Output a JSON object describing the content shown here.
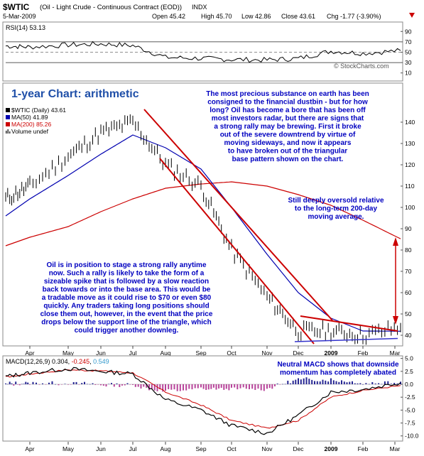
{
  "header": {
    "symbol": "$WTIC",
    "description": "(Oil - Light Crude - Continuous Contract (EOD))",
    "exchange": "INDX",
    "date": "5-Mar-2009",
    "open": "Open 45.42",
    "high": "High 45.70",
    "low": "Low 42.86",
    "close": "Close 43.61",
    "chg": "Chg -1.77 (-3.90%)",
    "chg_arrow": "down-arrow-icon",
    "watermark": "© StockCharts.com"
  },
  "colors": {
    "panel_bg": "#ffffff",
    "page_bg": "#ffffff",
    "price": "#000000",
    "ma50": "#0000b0",
    "ma200": "#cc0000",
    "channel": "#cc0000",
    "annotation_text": "#0000c0",
    "rsi_line": "#000000",
    "macd_line": "#000000",
    "macd_signal": "#cc0000",
    "histogram": "#000080",
    "neg_fill": "#ff9999",
    "year_label": "#000000"
  },
  "rsi_panel": {
    "label": "RSI(14) 53.13",
    "ticks": [
      "90",
      "70",
      "50",
      "30",
      "10"
    ],
    "ylim": [
      0,
      100
    ]
  },
  "price_panel": {
    "title": "1-year Chart: arithmetic",
    "legend": [
      {
        "text": "$WTIC (Daily) 43.61",
        "marker": "black"
      },
      {
        "text": "MA(50) 41.89",
        "marker": "blue"
      },
      {
        "text": "MA(200) 85.26",
        "marker": "red"
      },
      {
        "text": "Volume undef",
        "marker": "volume"
      }
    ],
    "ticks": [
      "140",
      "130",
      "120",
      "110",
      "100",
      "90",
      "80",
      "70",
      "60",
      "50",
      "40"
    ],
    "ylim": [
      35,
      148
    ],
    "annotation_top": [
      "The most precious substance on earth has been",
      "consigned to the financial dustbin - but for how",
      "long? Oil has become a bore that has been off",
      "most investors radar, but there are signs that",
      "a strong rally may be brewing. First it broke",
      "out of the severe downtrend by virtue of",
      "moving sideways, and now it appears",
      "to have broken out of the triangular",
      "base pattern shown on the chart."
    ],
    "annotation_right": [
      "Still deeply oversold relative",
      "to the long-term 200-day",
      "moving average."
    ],
    "annotation_left": [
      "Oil is in position to stage a strong rally anytime",
      "now. Such a rally is likely to take the form of a",
      "sizeable spike that is followed by a slow reaction",
      "back towards or into the base area. This would be",
      "a tradable move as it could rise to $70 or even $80",
      "quickly. Any traders taking long positions should",
      "close them out, however, in the event that the price",
      "drops below the support line of the triangle, which",
      "could trigger another downleg."
    ]
  },
  "macd_panel": {
    "label": "MACD(12,26,9)",
    "v1": "0.304",
    "v2": "-0.245",
    "v3": "0.549",
    "ticks": [
      "5.0",
      "2.5",
      "0.0",
      "-2.5",
      "-5.0",
      "-7.5",
      "-10.0"
    ],
    "ylim": [
      -11,
      5.5
    ],
    "annotation": [
      "Neutral MACD shows that downside",
      "momentum has completely abated"
    ]
  },
  "months": [
    "Apr",
    "May",
    "Jun",
    "Jul",
    "Aug",
    "Sep",
    "Oct",
    "Nov",
    "Dec",
    "2009",
    "Feb",
    "Mar"
  ],
  "chart_data": [
    {
      "type": "line",
      "name": "RSI(14)",
      "title": "RSI(14) 53.13",
      "x": [
        "Mar",
        "Apr",
        "May",
        "Jun",
        "Jul",
        "Aug",
        "Sep",
        "Oct",
        "Nov",
        "Dec",
        "Jan",
        "Feb",
        "Mar"
      ],
      "series": [
        {
          "name": "RSI(14)",
          "values": [
            62,
            60,
            64,
            66,
            63,
            40,
            38,
            36,
            35,
            38,
            52,
            48,
            53.13
          ]
        }
      ],
      "ylim": [
        0,
        100
      ],
      "reference_lines": [
        30,
        70
      ]
    },
    {
      "type": "line",
      "title": "$WTIC (Daily) 43.61",
      "x": [
        "Mar",
        "Apr",
        "May",
        "Jun",
        "Jul",
        "Aug",
        "Sep",
        "Oct",
        "Nov",
        "Dec",
        "Jan",
        "Feb",
        "Mar"
      ],
      "series": [
        {
          "name": "$WTIC (Daily) 43.61",
          "values": [
            104,
            110,
            124,
            135,
            140,
            120,
            110,
            80,
            58,
            42,
            42,
            40,
            43.61
          ]
        },
        {
          "name": "MA(50) 41.89",
          "values": [
            96,
            104,
            115,
            125,
            134,
            128,
            118,
            100,
            78,
            60,
            48,
            42,
            41.89
          ]
        },
        {
          "name": "MA(200) 85.26",
          "values": [
            82,
            86,
            91,
            98,
            104,
            109,
            111,
            112,
            110,
            106,
            101,
            94,
            85.26
          ]
        }
      ],
      "ylim": [
        35,
        148
      ]
    },
    {
      "type": "line",
      "title": "MACD(12,26,9) 0.304, -0.245, 0.549",
      "x": [
        "Mar",
        "Apr",
        "May",
        "Jun",
        "Jul",
        "Aug",
        "Sep",
        "Oct",
        "Nov",
        "Dec",
        "Jan",
        "Feb",
        "Mar"
      ],
      "series": [
        {
          "name": "MACD",
          "values": [
            1.5,
            2.2,
            3.0,
            2.5,
            2.0,
            -3.0,
            -5.0,
            -8.0,
            -9.5,
            -6.0,
            -1.5,
            -1.0,
            0.304
          ]
        },
        {
          "name": "Signal",
          "values": [
            1.4,
            2.0,
            2.8,
            2.6,
            2.2,
            -1.5,
            -4.0,
            -7.0,
            -8.5,
            -7.0,
            -2.5,
            -1.2,
            -0.245
          ]
        }
      ],
      "ylim": [
        -11,
        5.5
      ]
    }
  ]
}
